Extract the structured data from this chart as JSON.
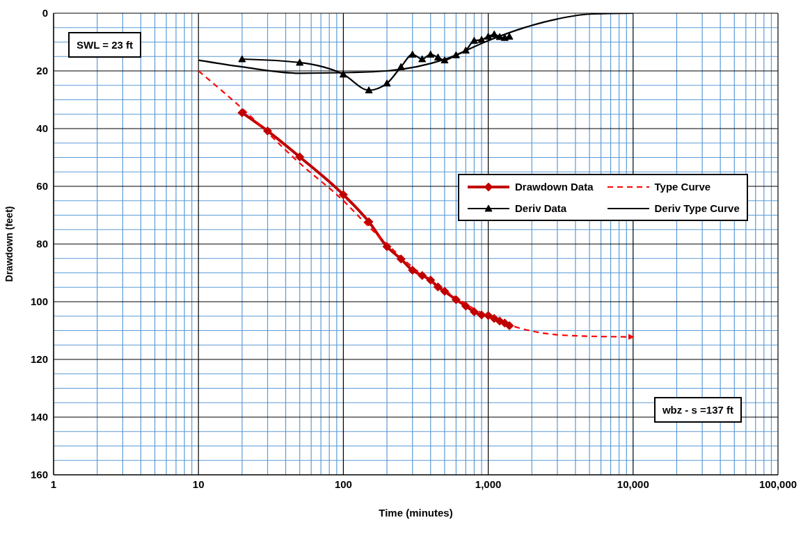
{
  "chart_data": {
    "type": "line",
    "xlabel": "Time (minutes)",
    "ylabel": "Drawdown (feet)",
    "log": "x",
    "grid": true,
    "legend": "right",
    "xlim": [
      1,
      100000
    ],
    "xticks": [
      1,
      {
        "value": 2,
        "label": null
      },
      {
        "value": 3,
        "label": null
      },
      {
        "value": 4,
        "label": null
      },
      {
        "value": 5,
        "label": null
      },
      {
        "value": 6,
        "label": null
      },
      {
        "value": 7,
        "label": null
      },
      {
        "value": 8,
        "label": null
      },
      {
        "value": 9,
        "label": null
      },
      10,
      {
        "value": 20,
        "label": null
      },
      {
        "value": 30,
        "label": null
      },
      {
        "value": 40,
        "label": null
      },
      {
        "value": 50,
        "label": null
      },
      {
        "value": 60,
        "label": null
      },
      {
        "value": 70,
        "label": null
      },
      {
        "value": 80,
        "label": null
      },
      {
        "value": 90,
        "label": null
      },
      100,
      {
        "value": 200,
        "label": null
      },
      {
        "value": 300,
        "label": null
      },
      {
        "value": 400,
        "label": null
      },
      {
        "value": 500,
        "label": null
      },
      {
        "value": 600,
        "label": null
      },
      {
        "value": 700,
        "label": null
      },
      {
        "value": 800,
        "label": null
      },
      {
        "value": 900,
        "label": null
      },
      {
        "value": 1000,
        "label": "1,000"
      },
      {
        "value": 2000,
        "label": null
      },
      {
        "value": 3000,
        "label": null
      },
      {
        "value": 4000,
        "label": null
      },
      {
        "value": 5000,
        "label": null
      },
      {
        "value": 6000,
        "label": null
      },
      {
        "value": 7000,
        "label": null
      },
      {
        "value": 8000,
        "label": null
      },
      {
        "value": 9000,
        "label": null
      },
      {
        "value": 10000,
        "label": "10,000"
      },
      {
        "value": 20000,
        "label": null
      },
      {
        "value": 30000,
        "label": null
      },
      {
        "value": 40000,
        "label": null
      },
      {
        "value": 50000,
        "label": null
      },
      {
        "value": 60000,
        "label": null
      },
      {
        "value": 70000,
        "label": null
      },
      {
        "value": 80000,
        "label": null
      },
      {
        "value": 90000,
        "label": null
      },
      {
        "value": 100000,
        "label": "100,000"
      }
    ],
    "ylim": [
      160,
      0
    ],
    "yticks": [
      0,
      {
        "value": 5,
        "label": null
      },
      {
        "value": 10,
        "label": null
      },
      {
        "value": 15,
        "label": null
      },
      20,
      {
        "value": 25,
        "label": null
      },
      {
        "value": 30,
        "label": null
      },
      {
        "value": 35,
        "label": null
      },
      40,
      {
        "value": 45,
        "label": null
      },
      {
        "value": 50,
        "label": null
      },
      {
        "value": 55,
        "label": null
      },
      60,
      {
        "value": 65,
        "label": null
      },
      {
        "value": 70,
        "label": null
      },
      {
        "value": 75,
        "label": null
      },
      80,
      {
        "value": 85,
        "label": null
      },
      {
        "value": 90,
        "label": null
      },
      {
        "value": 95,
        "label": null
      },
      100,
      {
        "value": 105,
        "label": null
      },
      {
        "value": 110,
        "label": null
      },
      {
        "value": 115,
        "label": null
      },
      120,
      {
        "value": 125,
        "label": null
      },
      {
        "value": 130,
        "label": null
      },
      {
        "value": 135,
        "label": null
      },
      140,
      {
        "value": 145,
        "label": null
      },
      {
        "value": 150,
        "label": null
      },
      {
        "value": 155,
        "label": null
      },
      160
    ],
    "annotations": [
      "SWL = 23 ft",
      "wbz - s =137 ft"
    ],
    "series": [
      {
        "name": "Drawdown Data",
        "color": "#c00000",
        "marker": "diamond",
        "line_style": "solid",
        "x": [
          20,
          30,
          50,
          100,
          150,
          200,
          250,
          300,
          350,
          400,
          450,
          500,
          600,
          700,
          800,
          900,
          1000,
          1100,
          1200,
          1300,
          1400
        ],
        "values": [
          34.5,
          40.8,
          49.8,
          62.9,
          72.3,
          80.9,
          85.2,
          89.1,
          90.9,
          92.5,
          94.9,
          96.4,
          99.3,
          101.5,
          103.5,
          104.6,
          104.8,
          105.8,
          106.7,
          107.4,
          108.3
        ]
      },
      {
        "name": "Type Curve",
        "color": "#ff0000",
        "marker": "none",
        "line_style": "dashed",
        "x": [
          10,
          20,
          50,
          100,
          150,
          200,
          300,
          500,
          1000,
          1540,
          2060,
          3950,
          10000
        ],
        "values": [
          20,
          33,
          52,
          65,
          74,
          80,
          88,
          96,
          105,
          108.7,
          110.3,
          111.8,
          112.2
        ]
      },
      {
        "name": "Deriv Data",
        "color": "#000000",
        "marker": "triangle",
        "line_style": "solid",
        "x": [
          20,
          50,
          100,
          150,
          200,
          250,
          300,
          350,
          400,
          450,
          500,
          600,
          700,
          800,
          900,
          1000,
          1100,
          1200,
          1300,
          1400
        ],
        "values": [
          15.9,
          17.1,
          21.2,
          26.7,
          24.3,
          18.6,
          14.3,
          15.9,
          14.3,
          15.3,
          16.3,
          14.5,
          12.9,
          9.5,
          9.2,
          8.1,
          7.3,
          8.2,
          8.5,
          8.1
        ]
      },
      {
        "name": "Deriv Type Curve",
        "color": "#000000",
        "marker": "none",
        "line_style": "solid",
        "x": [
          10,
          20,
          50,
          100,
          200,
          500,
          1000,
          1800,
          3000,
          5000,
          10000
        ],
        "values": [
          16.3,
          18.6,
          20.8,
          20.6,
          20,
          16,
          9.5,
          4.9,
          2,
          0.3,
          0
        ]
      }
    ]
  }
}
